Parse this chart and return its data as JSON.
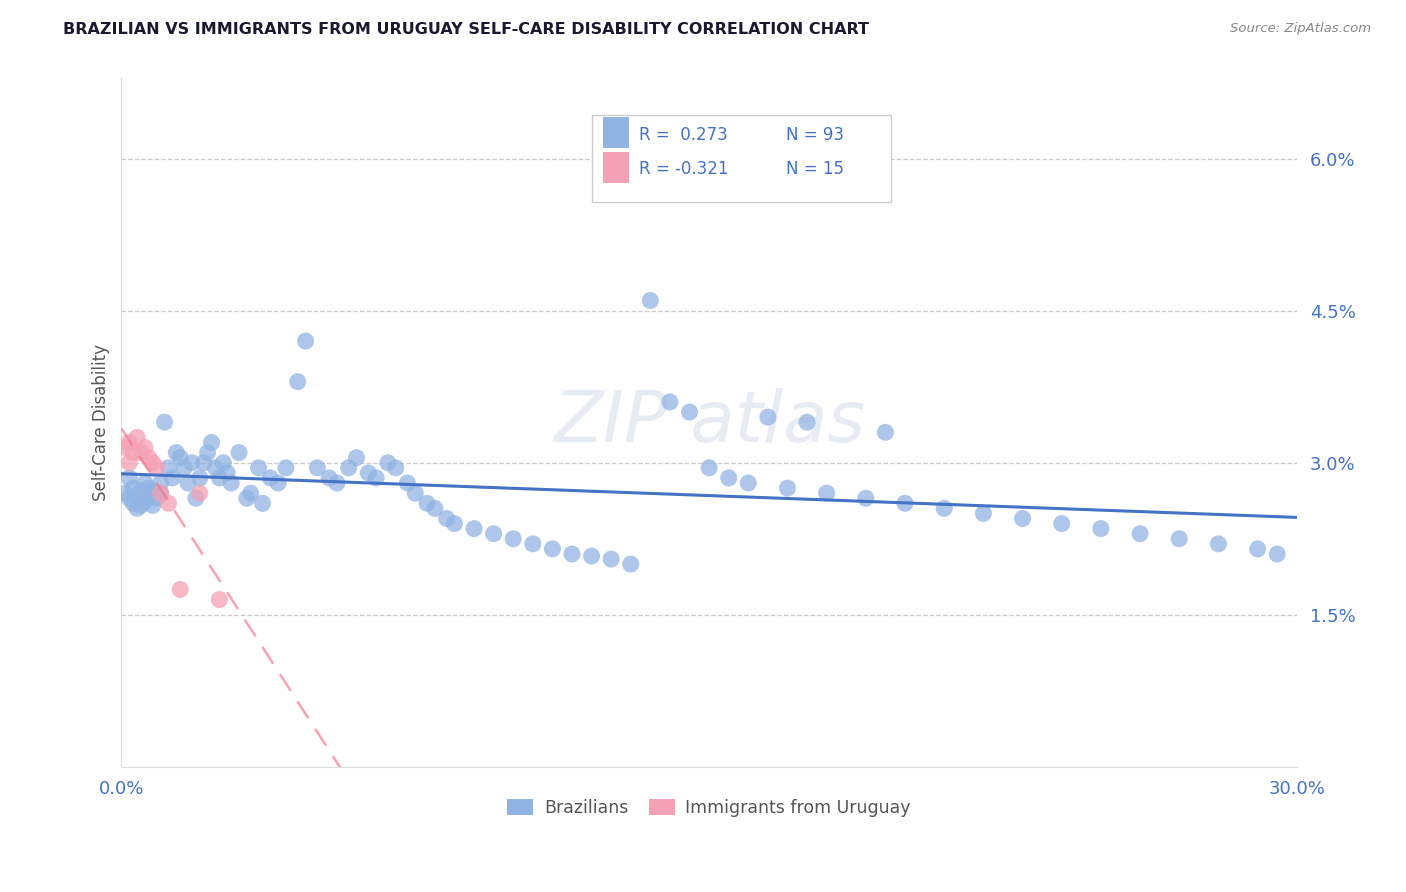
{
  "title": "BRAZILIAN VS IMMIGRANTS FROM URUGUAY SELF-CARE DISABILITY CORRELATION CHART",
  "source": "Source: ZipAtlas.com",
  "ylabel": "Self-Care Disability",
  "xmin": 0.0,
  "xmax": 0.3,
  "ymin": 0.0,
  "ymax": 0.068,
  "yticks": [
    0.015,
    0.03,
    0.045,
    0.06
  ],
  "ytick_labels": [
    "1.5%",
    "3.0%",
    "4.5%",
    "6.0%"
  ],
  "xticks": [
    0.0,
    0.05,
    0.1,
    0.15,
    0.2,
    0.25,
    0.3
  ],
  "xtick_labels": [
    "0.0%",
    "",
    "",
    "",
    "",
    "",
    "30.0%"
  ],
  "brazilian_color": "#92b4e3",
  "uruguay_color": "#f4a0b5",
  "brazil_line_color": "#4472c4",
  "uruguay_line_color": "#f4728a",
  "legend_R_brazil": "R =  0.273",
  "legend_N_brazil": "N = 93",
  "legend_R_uruguay": "R = -0.321",
  "legend_N_uruguay": "N = 15",
  "brazil_x": [
    0.001,
    0.002,
    0.002,
    0.003,
    0.003,
    0.004,
    0.004,
    0.005,
    0.005,
    0.006,
    0.006,
    0.007,
    0.007,
    0.008,
    0.008,
    0.009,
    0.01,
    0.01,
    0.011,
    0.012,
    0.013,
    0.014,
    0.015,
    0.016,
    0.017,
    0.018,
    0.019,
    0.02,
    0.021,
    0.022,
    0.023,
    0.024,
    0.025,
    0.026,
    0.027,
    0.028,
    0.03,
    0.032,
    0.033,
    0.035,
    0.036,
    0.038,
    0.04,
    0.042,
    0.045,
    0.047,
    0.05,
    0.053,
    0.055,
    0.058,
    0.06,
    0.063,
    0.065,
    0.068,
    0.07,
    0.073,
    0.075,
    0.078,
    0.08,
    0.083,
    0.085,
    0.09,
    0.095,
    0.1,
    0.105,
    0.11,
    0.115,
    0.12,
    0.125,
    0.13,
    0.135,
    0.14,
    0.145,
    0.15,
    0.155,
    0.16,
    0.17,
    0.18,
    0.19,
    0.2,
    0.21,
    0.22,
    0.23,
    0.24,
    0.25,
    0.26,
    0.27,
    0.28,
    0.29,
    0.295,
    0.195,
    0.165,
    0.175
  ],
  "brazil_y": [
    0.027,
    0.0265,
    0.0285,
    0.026,
    0.0275,
    0.0255,
    0.0268,
    0.0258,
    0.0272,
    0.0262,
    0.028,
    0.0268,
    0.0275,
    0.0272,
    0.0258,
    0.0265,
    0.027,
    0.028,
    0.034,
    0.0295,
    0.0285,
    0.031,
    0.0305,
    0.0295,
    0.028,
    0.03,
    0.0265,
    0.0285,
    0.03,
    0.031,
    0.032,
    0.0295,
    0.0285,
    0.03,
    0.029,
    0.028,
    0.031,
    0.0265,
    0.027,
    0.0295,
    0.026,
    0.0285,
    0.028,
    0.0295,
    0.038,
    0.042,
    0.0295,
    0.0285,
    0.028,
    0.0295,
    0.0305,
    0.029,
    0.0285,
    0.03,
    0.0295,
    0.028,
    0.027,
    0.026,
    0.0255,
    0.0245,
    0.024,
    0.0235,
    0.023,
    0.0225,
    0.022,
    0.0215,
    0.021,
    0.0208,
    0.0205,
    0.02,
    0.046,
    0.036,
    0.035,
    0.0295,
    0.0285,
    0.028,
    0.0275,
    0.027,
    0.0265,
    0.026,
    0.0255,
    0.025,
    0.0245,
    0.024,
    0.0235,
    0.023,
    0.0225,
    0.022,
    0.0215,
    0.021,
    0.033,
    0.0345,
    0.034
  ],
  "uruguay_x": [
    0.001,
    0.002,
    0.002,
    0.003,
    0.004,
    0.005,
    0.006,
    0.007,
    0.008,
    0.009,
    0.01,
    0.012,
    0.015,
    0.02,
    0.025
  ],
  "uruguay_y": [
    0.0315,
    0.032,
    0.03,
    0.031,
    0.0325,
    0.031,
    0.0315,
    0.0305,
    0.03,
    0.0295,
    0.027,
    0.026,
    0.0175,
    0.027,
    0.0165
  ],
  "background_color": "#ffffff",
  "grid_color": "#cccccc",
  "title_color": "#1a1a2e",
  "tick_color": "#4472c4"
}
